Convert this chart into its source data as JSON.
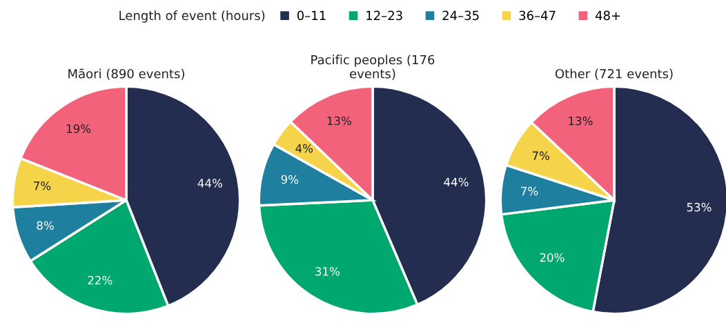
{
  "chart_data": [
    {
      "type": "pie",
      "title": "Māori (890 events)",
      "legend": "top",
      "legend_title": "Length of event (hours)",
      "categories": [
        "0–11",
        "12–23",
        "24–35",
        "36–47",
        "48+"
      ],
      "values": [
        44,
        22,
        8,
        7,
        19
      ],
      "value_labels": [
        "44%",
        "22%",
        "8%",
        "7%",
        "19%"
      ],
      "colors": [
        "#232d4f",
        "#00a76f",
        "#1f7f9f",
        "#f5d44a",
        "#f2637b"
      ]
    },
    {
      "type": "pie",
      "title": "Pacific peoples (176\nevents)",
      "categories": [
        null,
        null,
        null,
        null,
        null
      ],
      "values": [
        44,
        31,
        9,
        4,
        13
      ],
      "value_labels": [
        "44%",
        "31%",
        "9%",
        "4%",
        "13%"
      ],
      "colors": [
        "#232d4f",
        "#00a76f",
        "#1f7f9f",
        "#f5d44a",
        "#f2637b"
      ]
    },
    {
      "type": "pie",
      "title": "Other (721 events)",
      "categories": [
        null,
        null,
        null,
        null,
        null
      ],
      "values": [
        53,
        20,
        7,
        7,
        13
      ],
      "value_labels": [
        "53%",
        "20%",
        "7%",
        "7%",
        "13%"
      ],
      "colors": [
        "#232d4f",
        "#00a76f",
        "#1f7f9f",
        "#f5d44a",
        "#f2637b"
      ]
    }
  ]
}
